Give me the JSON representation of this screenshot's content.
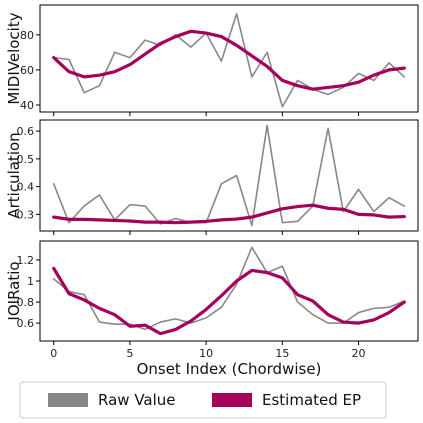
{
  "chart_data": [
    {
      "type": "line",
      "ylabel": "MIDIVelocity",
      "ylim": [
        36,
        97
      ],
      "yticks": [
        40,
        60,
        80
      ],
      "x": [
        0,
        1,
        2,
        3,
        4,
        5,
        6,
        7,
        8,
        9,
        10,
        11,
        12,
        13,
        14,
        15,
        16,
        17,
        18,
        19,
        20,
        21,
        22,
        23
      ],
      "series": [
        {
          "name": "Raw Value",
          "color": "#888888",
          "values": [
            67,
            66,
            47,
            51,
            70,
            67,
            77,
            74,
            80,
            73,
            81,
            65,
            92,
            56,
            70,
            39,
            54,
            49,
            46,
            50,
            58,
            54,
            64,
            56
          ]
        },
        {
          "name": "Estimated EP",
          "color": "#a5005a",
          "values": [
            67,
            59,
            56,
            57,
            59,
            63,
            69,
            75,
            79,
            82,
            81,
            79,
            74,
            68,
            62,
            54,
            51,
            49,
            50,
            51,
            53,
            57,
            60,
            61
          ]
        }
      ]
    },
    {
      "type": "line",
      "ylabel": "Articulation",
      "ylim": [
        0.24,
        0.64
      ],
      "yticks": [
        0.3,
        0.4,
        0.5,
        0.6
      ],
      "x": [
        0,
        1,
        2,
        3,
        4,
        5,
        6,
        7,
        8,
        9,
        10,
        11,
        12,
        13,
        14,
        15,
        16,
        17,
        18,
        19,
        20,
        21,
        22,
        23
      ],
      "series": [
        {
          "name": "Raw Value",
          "color": "#888888",
          "values": [
            0.41,
            0.27,
            0.33,
            0.37,
            0.28,
            0.335,
            0.33,
            0.265,
            0.285,
            0.27,
            0.27,
            0.41,
            0.44,
            0.26,
            0.62,
            0.27,
            0.275,
            0.33,
            0.61,
            0.31,
            0.39,
            0.31,
            0.36,
            0.33
          ]
        },
        {
          "name": "Estimated EP",
          "color": "#a5005a",
          "values": [
            0.29,
            0.282,
            0.282,
            0.28,
            0.278,
            0.276,
            0.272,
            0.272,
            0.27,
            0.272,
            0.275,
            0.28,
            0.283,
            0.29,
            0.305,
            0.32,
            0.328,
            0.333,
            0.322,
            0.318,
            0.3,
            0.298,
            0.29,
            0.292
          ]
        }
      ]
    },
    {
      "type": "line",
      "ylabel": "IOIRatio",
      "xlabel": "Onset Index (Chordwise)",
      "ylim": [
        0.43,
        1.38
      ],
      "yticks": [
        0.6,
        0.8,
        1.0,
        1.2
      ],
      "xticks": [
        0,
        5,
        10,
        15,
        20
      ],
      "x": [
        0,
        1,
        2,
        3,
        4,
        5,
        6,
        7,
        8,
        9,
        10,
        11,
        12,
        13,
        14,
        15,
        16,
        17,
        18,
        19,
        20,
        21,
        22,
        23
      ],
      "series": [
        {
          "name": "Raw Value",
          "color": "#888888",
          "values": [
            1.02,
            0.9,
            0.87,
            0.61,
            0.59,
            0.59,
            0.54,
            0.61,
            0.64,
            0.6,
            0.65,
            0.75,
            0.97,
            1.32,
            1.08,
            1.14,
            0.8,
            0.68,
            0.6,
            0.6,
            0.7,
            0.74,
            0.75,
            0.81
          ]
        },
        {
          "name": "Estimated EP",
          "color": "#a5005a",
          "values": [
            1.12,
            0.88,
            0.82,
            0.74,
            0.68,
            0.57,
            0.58,
            0.5,
            0.54,
            0.62,
            0.73,
            0.86,
            1.0,
            1.1,
            1.08,
            1.03,
            0.87,
            0.81,
            0.68,
            0.61,
            0.6,
            0.63,
            0.7,
            0.8
          ]
        }
      ]
    }
  ],
  "legend": {
    "placement": "bottom",
    "items": [
      {
        "label": "Raw Value",
        "color": "#888888"
      },
      {
        "label": "Estimated EP",
        "color": "#a5005a"
      }
    ]
  }
}
